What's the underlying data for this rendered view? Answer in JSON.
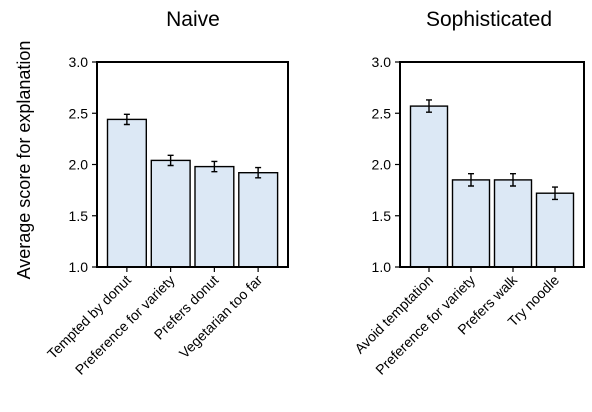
{
  "figure": {
    "ylabel": "Average score for explanation"
  },
  "chart_data": [
    {
      "type": "bar",
      "title": "Naive",
      "ylabel": "Average score for explanation",
      "ylim": [
        1.0,
        3.0
      ],
      "yticks": [
        "1.0",
        "1.5",
        "2.0",
        "2.5",
        "3.0"
      ],
      "categories": [
        "Tempted by donut",
        "Preference for variety",
        "Prefers donut",
        "Vegetarian too far"
      ],
      "values": [
        2.44,
        2.04,
        1.98,
        1.92
      ],
      "errors": [
        0.05,
        0.05,
        0.05,
        0.05
      ],
      "bar_color": "#dce8f5",
      "grid": false
    },
    {
      "type": "bar",
      "title": "Sophisticated",
      "ylim": [
        1.0,
        3.0
      ],
      "yticks": [
        "1.0",
        "1.5",
        "2.0",
        "2.5",
        "3.0"
      ],
      "categories": [
        "Avoid temptation",
        "Preference for variety",
        "Prefers walk",
        "Try noodle"
      ],
      "values": [
        2.57,
        1.85,
        1.85,
        1.72
      ],
      "errors": [
        0.06,
        0.06,
        0.06,
        0.06
      ],
      "bar_color": "#dce8f5",
      "grid": false
    }
  ]
}
